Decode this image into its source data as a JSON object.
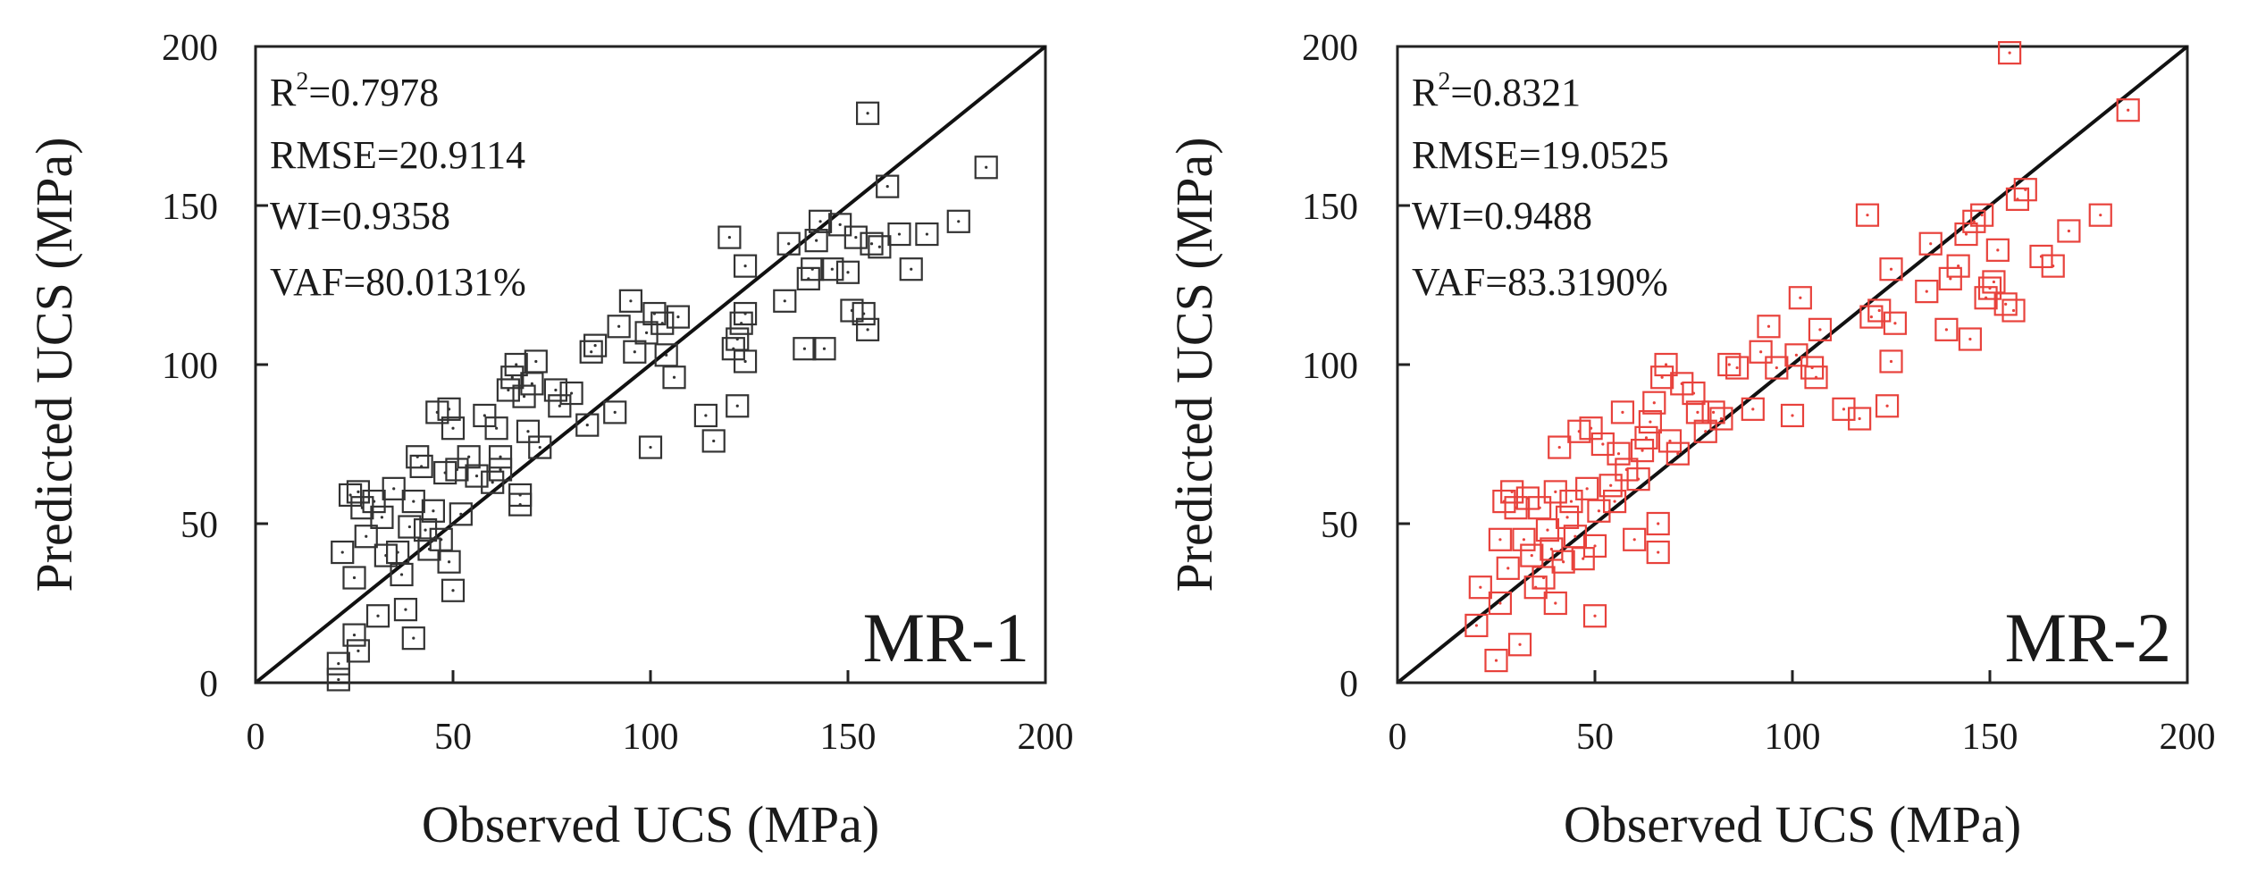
{
  "chart_data": [
    {
      "type": "scatter",
      "model_label": "MR-1",
      "xlabel": "Observed UCS (MPa)",
      "ylabel": "Predicted UCS (MPa)",
      "xlim": [
        0,
        200
      ],
      "ylim": [
        0,
        200
      ],
      "xticks": [
        "0",
        "50",
        "100",
        "150",
        "200"
      ],
      "yticks": [
        "0",
        "50",
        "100",
        "150",
        "200"
      ],
      "marker_color": "#333333",
      "stats": {
        "r2_label": "R",
        "r2_sup": "2",
        "r2_value": "=0.7978",
        "rmse": "RMSE=20.9114",
        "wi": "WI=0.9358",
        "vaf": "VAF=80.0131%"
      },
      "reference_line": [
        [
          0,
          0
        ],
        [
          200,
          200
        ]
      ],
      "points": [
        [
          21,
          1
        ],
        [
          21,
          6
        ],
        [
          26,
          10
        ],
        [
          25,
          15
        ],
        [
          31,
          21
        ],
        [
          38,
          23
        ],
        [
          40,
          14
        ],
        [
          22,
          41
        ],
        [
          25,
          33
        ],
        [
          28,
          46
        ],
        [
          33,
          40
        ],
        [
          36,
          41
        ],
        [
          37,
          34
        ],
        [
          39,
          49
        ],
        [
          24,
          59
        ],
        [
          26,
          60
        ],
        [
          27,
          55
        ],
        [
          30,
          57
        ],
        [
          32,
          52
        ],
        [
          35,
          61
        ],
        [
          40,
          57
        ],
        [
          41,
          71
        ],
        [
          42,
          68
        ],
        [
          43,
          48
        ],
        [
          44,
          42
        ],
        [
          45,
          54
        ],
        [
          46,
          85
        ],
        [
          47,
          45
        ],
        [
          48,
          66
        ],
        [
          49,
          38
        ],
        [
          49,
          86
        ],
        [
          50,
          29
        ],
        [
          50,
          80
        ],
        [
          51,
          67
        ],
        [
          52,
          53
        ],
        [
          54,
          71
        ],
        [
          56,
          65
        ],
        [
          58,
          84
        ],
        [
          60,
          63
        ],
        [
          61,
          80
        ],
        [
          62,
          67
        ],
        [
          62,
          71
        ],
        [
          64,
          92
        ],
        [
          65,
          96
        ],
        [
          66,
          100
        ],
        [
          67,
          56
        ],
        [
          67,
          59
        ],
        [
          68,
          90
        ],
        [
          69,
          79
        ],
        [
          70,
          94
        ],
        [
          71,
          101
        ],
        [
          72,
          74
        ],
        [
          76,
          92
        ],
        [
          77,
          87
        ],
        [
          80,
          91
        ],
        [
          84,
          81
        ],
        [
          85,
          104
        ],
        [
          86,
          106
        ],
        [
          91,
          85
        ],
        [
          92,
          112
        ],
        [
          95,
          120
        ],
        [
          96,
          104
        ],
        [
          99,
          110
        ],
        [
          100,
          74
        ],
        [
          101,
          116
        ],
        [
          103,
          113
        ],
        [
          104,
          103
        ],
        [
          106,
          96
        ],
        [
          107,
          115
        ],
        [
          114,
          84
        ],
        [
          116,
          76
        ],
        [
          120,
          140
        ],
        [
          121,
          105
        ],
        [
          122,
          108
        ],
        [
          122,
          87
        ],
        [
          123,
          113
        ],
        [
          124,
          116
        ],
        [
          124,
          101
        ],
        [
          124,
          131
        ],
        [
          134,
          120
        ],
        [
          135,
          138
        ],
        [
          139,
          105
        ],
        [
          140,
          127
        ],
        [
          141,
          130
        ],
        [
          142,
          139
        ],
        [
          143,
          145
        ],
        [
          144,
          105
        ],
        [
          146,
          130
        ],
        [
          148,
          144
        ],
        [
          150,
          129
        ],
        [
          151,
          117
        ],
        [
          152,
          140
        ],
        [
          154,
          116
        ],
        [
          155,
          179
        ],
        [
          155,
          111
        ],
        [
          156,
          138
        ],
        [
          158,
          137
        ],
        [
          160,
          156
        ],
        [
          163,
          141
        ],
        [
          166,
          130
        ],
        [
          170,
          141
        ],
        [
          178,
          145
        ],
        [
          185,
          162
        ]
      ]
    },
    {
      "type": "scatter",
      "model_label": "MR-2",
      "xlabel": "Observed UCS (MPa)",
      "ylabel": "Predicted UCS (MPa)",
      "xlim": [
        0,
        200
      ],
      "ylim": [
        0,
        200
      ],
      "xticks": [
        "0",
        "50",
        "100",
        "150",
        "200"
      ],
      "yticks": [
        "0",
        "50",
        "100",
        "150",
        "200"
      ],
      "marker_color": "#e8423c",
      "stats": {
        "r2_label": "R",
        "r2_sup": "2",
        "r2_value": "=0.8321",
        "rmse": "RMSE=19.0525",
        "wi": "WI=0.9488",
        "vaf": "VAF=83.3190%"
      },
      "reference_line": [
        [
          0,
          0
        ],
        [
          200,
          200
        ]
      ],
      "points": [
        [
          20,
          18
        ],
        [
          21,
          30
        ],
        [
          25,
          7
        ],
        [
          26,
          25
        ],
        [
          26,
          45
        ],
        [
          27,
          57
        ],
        [
          28,
          36
        ],
        [
          29,
          60
        ],
        [
          30,
          55
        ],
        [
          31,
          12
        ],
        [
          32,
          45
        ],
        [
          33,
          58
        ],
        [
          34,
          40
        ],
        [
          35,
          30
        ],
        [
          36,
          55
        ],
        [
          37,
          33
        ],
        [
          38,
          48
        ],
        [
          39,
          42
        ],
        [
          40,
          60
        ],
        [
          40,
          25
        ],
        [
          41,
          74
        ],
        [
          42,
          38
        ],
        [
          43,
          52
        ],
        [
          44,
          57
        ],
        [
          45,
          46
        ],
        [
          46,
          79
        ],
        [
          47,
          39
        ],
        [
          48,
          61
        ],
        [
          49,
          80
        ],
        [
          50,
          21
        ],
        [
          50,
          43
        ],
        [
          51,
          54
        ],
        [
          52,
          75
        ],
        [
          54,
          62
        ],
        [
          55,
          57
        ],
        [
          56,
          72
        ],
        [
          57,
          85
        ],
        [
          58,
          67
        ],
        [
          60,
          45
        ],
        [
          61,
          64
        ],
        [
          62,
          73
        ],
        [
          63,
          77
        ],
        [
          64,
          82
        ],
        [
          65,
          88
        ],
        [
          66,
          41
        ],
        [
          66,
          50
        ],
        [
          67,
          96
        ],
        [
          68,
          100
        ],
        [
          69,
          76
        ],
        [
          71,
          72
        ],
        [
          72,
          94
        ],
        [
          75,
          91
        ],
        [
          76,
          85
        ],
        [
          78,
          79
        ],
        [
          80,
          85
        ],
        [
          82,
          83
        ],
        [
          84,
          100
        ],
        [
          86,
          99
        ],
        [
          90,
          86
        ],
        [
          92,
          104
        ],
        [
          94,
          112
        ],
        [
          96,
          99
        ],
        [
          100,
          84
        ],
        [
          101,
          103
        ],
        [
          102,
          121
        ],
        [
          105,
          99
        ],
        [
          106,
          96
        ],
        [
          107,
          111
        ],
        [
          113,
          86
        ],
        [
          117,
          83
        ],
        [
          119,
          147
        ],
        [
          120,
          115
        ],
        [
          122,
          117
        ],
        [
          124,
          87
        ],
        [
          125,
          130
        ],
        [
          125,
          101
        ],
        [
          126,
          113
        ],
        [
          134,
          123
        ],
        [
          135,
          138
        ],
        [
          139,
          111
        ],
        [
          140,
          127
        ],
        [
          142,
          131
        ],
        [
          144,
          141
        ],
        [
          145,
          108
        ],
        [
          146,
          145
        ],
        [
          148,
          147
        ],
        [
          149,
          121
        ],
        [
          150,
          124
        ],
        [
          151,
          126
        ],
        [
          152,
          136
        ],
        [
          154,
          119
        ],
        [
          155,
          198
        ],
        [
          156,
          117
        ],
        [
          157,
          152
        ],
        [
          159,
          155
        ],
        [
          163,
          134
        ],
        [
          166,
          131
        ],
        [
          170,
          142
        ],
        [
          178,
          147
        ],
        [
          185,
          180
        ]
      ]
    }
  ]
}
